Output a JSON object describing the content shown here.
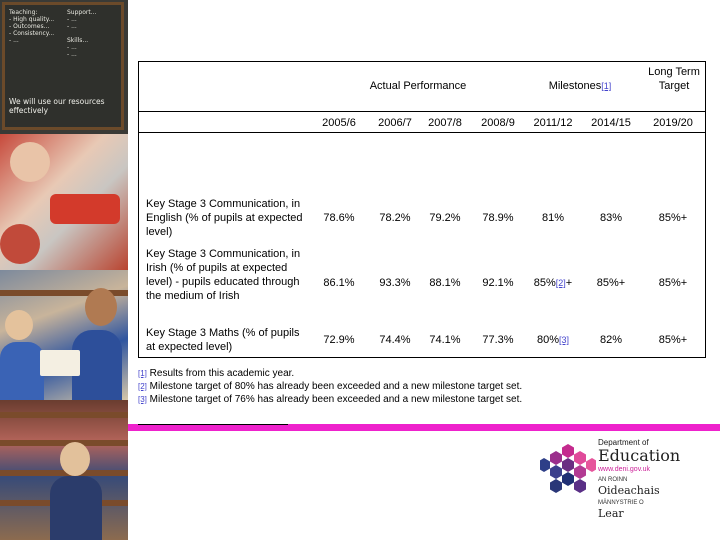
{
  "photos": {
    "board_left": "Teaching:\n- High quality...\n- Outcomes...\n- Consistency...\n- ...",
    "board_right": "Support...\n- ...\n- ...\n\nSkills...\n- ...\n- ...",
    "board_bottom": "We will use our resources effectively"
  },
  "table": {
    "group_actual": "Actual Performance",
    "group_milestones": "Milestones",
    "group_milestones_ref": "[1]",
    "group_long_term": "Long Term Target",
    "years": [
      "2005/6",
      "2006/7",
      "2007/8",
      "2008/9",
      "2011/12",
      "2014/15",
      "2019/20"
    ],
    "rows": [
      {
        "label": "Key Stage 3 Communication, in English (% of pupils at expected level)",
        "values": [
          "78.6%",
          "78.2%",
          "79.2%",
          "78.9%",
          "81%",
          "83%",
          "85%+"
        ],
        "ref": ""
      },
      {
        "label": "Key Stage 3 Communication, in Irish (% of pupils at expected level) - pupils educated through the medium of Irish",
        "values": [
          "86.1%",
          "93.3%",
          "88.1%",
          "92.1%",
          "85%",
          "85%+",
          "85%+"
        ],
        "ref": "[2]",
        "ref_suffix": "+"
      },
      {
        "label": "Key Stage 3 Maths (% of pupils at expected level)",
        "values": [
          "72.9%",
          "74.4%",
          "74.1%",
          "77.3%",
          "80%",
          "82%",
          "85%+"
        ],
        "ref": "[3]",
        "ref_suffix": ""
      }
    ]
  },
  "footnotes": [
    {
      "mark": "[1]",
      "text": " Results from this academic year."
    },
    {
      "mark": "[2]",
      "text": " Milestone target of 80% has already been exceeded and a new milestone target set."
    },
    {
      "mark": "[3]",
      "text": " Milestone target of 76% has already been exceeded and a new milestone target set."
    }
  ],
  "logo": {
    "dept": "Department of",
    "edu": "Education",
    "url": "www.deni.gov.uk",
    "ro": "AN ROINN",
    "ga": "Oideachais",
    "ma": "MÄNNYSTRIE O",
    "lear": "Lear"
  },
  "colors": {
    "accent_bar": "#ee22cc",
    "link": "#4444cc"
  }
}
